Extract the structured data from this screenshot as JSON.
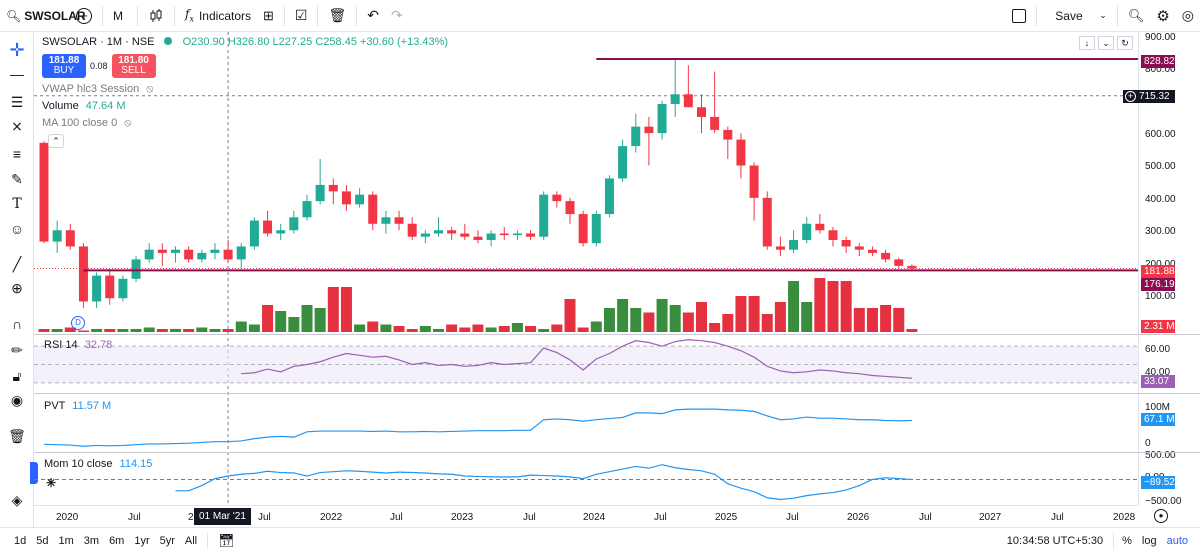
{
  "toolbar": {
    "symbol": "SWSOLAR",
    "interval": "M",
    "indicators": "Indicators",
    "save": "Save"
  },
  "legend": {
    "title": "SWSOLAR · 1M · NSE",
    "open": "O230.90",
    "high": "H326.80",
    "low": "L227.25",
    "close": "C258.45",
    "change": "+30.60 (+13.43%)",
    "buy_price": "181.88",
    "buy_label": "BUY",
    "spread": "0.08",
    "sell_price": "181.80",
    "sell_label": "SELL",
    "vwap": "VWAP hlc3 Session",
    "volume_label": "Volume",
    "volume_value": "47.64 M",
    "ma_label": "MA 100 close 0",
    "rsi_label": "RSI 14",
    "rsi_value": "32.78",
    "pvt_label": "PVT",
    "pvt_value": "11.57 M",
    "mom_label": "Mom 10 close",
    "mom_value": "114.15"
  },
  "price_axis": {
    "ticks": [
      "900.00",
      "800.00",
      "600.00",
      "500.00",
      "400.00",
      "300.00",
      "200.00",
      "100.00"
    ],
    "tag_hline_top": "828.82",
    "tag_cursor": "715.32",
    "tag_last": "181.88",
    "tag_hline_bottom": "176.19",
    "tag_volume": "2.31 M",
    "rsi_ticks": [
      "60.00",
      "40.00"
    ],
    "rsi_tag": "33.07",
    "pvt_ticks": [
      "100M",
      "0"
    ],
    "pvt_tag": "67.1 M",
    "mom_ticks": [
      "500.00",
      "0.00",
      "−500.00"
    ],
    "mom_tag": "−89.52"
  },
  "time_axis": {
    "labels": [
      "2020",
      "Jul",
      "2",
      "Jul",
      "2022",
      "Jul",
      "2023",
      "Jul",
      "2024",
      "Jul",
      "2025",
      "Jul",
      "2026",
      "Jul",
      "2027",
      "Jul",
      "2028"
    ],
    "cursor_label": "01 Mar '21"
  },
  "bottombar": {
    "ranges": [
      "1d",
      "5d",
      "1m",
      "3m",
      "6m",
      "1yr",
      "5yr",
      "All"
    ],
    "clock": "10:34:58 UTC+5:30",
    "percent": "%",
    "log": "log",
    "auto": "auto"
  },
  "chart_data": {
    "type": "candlestick",
    "interval": "1M",
    "x_start": "2020-01",
    "candles": [
      [
        570,
        575,
        260,
        265
      ],
      [
        265,
        330,
        230,
        300
      ],
      [
        300,
        320,
        240,
        250
      ],
      [
        250,
        260,
        60,
        80
      ],
      [
        80,
        170,
        60,
        160
      ],
      [
        160,
        180,
        70,
        90
      ],
      [
        90,
        160,
        80,
        150
      ],
      [
        150,
        220,
        140,
        210
      ],
      [
        210,
        260,
        200,
        240
      ],
      [
        240,
        260,
        190,
        230
      ],
      [
        230,
        250,
        200,
        240
      ],
      [
        240,
        250,
        200,
        210
      ],
      [
        210,
        240,
        200,
        230
      ],
      [
        230,
        260,
        210,
        240
      ],
      [
        240,
        270,
        200,
        210
      ],
      [
        210,
        260,
        180,
        250
      ],
      [
        250,
        340,
        240,
        330
      ],
      [
        330,
        360,
        280,
        290
      ],
      [
        290,
        320,
        270,
        300
      ],
      [
        300,
        360,
        290,
        340
      ],
      [
        340,
        410,
        330,
        390
      ],
      [
        390,
        520,
        380,
        440
      ],
      [
        440,
        460,
        380,
        420
      ],
      [
        420,
        440,
        360,
        380
      ],
      [
        380,
        430,
        370,
        410
      ],
      [
        410,
        420,
        300,
        320
      ],
      [
        320,
        360,
        290,
        340
      ],
      [
        340,
        360,
        300,
        320
      ],
      [
        320,
        340,
        270,
        280
      ],
      [
        280,
        300,
        260,
        290
      ],
      [
        290,
        340,
        280,
        300
      ],
      [
        300,
        310,
        270,
        290
      ],
      [
        290,
        320,
        270,
        280
      ],
      [
        280,
        300,
        260,
        270
      ],
      [
        270,
        300,
        250,
        290
      ],
      [
        290,
        310,
        270,
        285
      ],
      [
        285,
        300,
        270,
        290
      ],
      [
        290,
        300,
        270,
        280
      ],
      [
        280,
        420,
        270,
        410
      ],
      [
        410,
        420,
        370,
        390
      ],
      [
        390,
        400,
        320,
        350
      ],
      [
        350,
        360,
        250,
        260
      ],
      [
        260,
        360,
        250,
        350
      ],
      [
        350,
        470,
        340,
        460
      ],
      [
        460,
        580,
        450,
        560
      ],
      [
        560,
        660,
        540,
        620
      ],
      [
        620,
        650,
        500,
        600
      ],
      [
        600,
        700,
        580,
        690
      ],
      [
        690,
        830,
        650,
        720
      ],
      [
        720,
        810,
        680,
        680
      ],
      [
        680,
        720,
        600,
        650
      ],
      [
        650,
        790,
        600,
        610
      ],
      [
        610,
        620,
        520,
        580
      ],
      [
        580,
        600,
        460,
        500
      ],
      [
        500,
        510,
        330,
        400
      ],
      [
        400,
        420,
        240,
        250
      ],
      [
        250,
        280,
        220,
        240
      ],
      [
        240,
        300,
        230,
        270
      ],
      [
        270,
        340,
        260,
        320
      ],
      [
        320,
        350,
        290,
        300
      ],
      [
        300,
        310,
        250,
        270
      ],
      [
        270,
        280,
        230,
        250
      ],
      [
        250,
        260,
        220,
        240
      ],
      [
        240,
        250,
        220,
        230
      ],
      [
        230,
        240,
        200,
        210
      ],
      [
        210,
        215,
        180,
        190
      ],
      [
        190,
        195,
        175,
        182
      ]
    ],
    "volume_m": [
      2,
      2,
      3,
      1,
      2,
      2,
      2,
      2,
      3,
      2,
      2,
      2,
      3,
      2,
      2,
      7,
      5,
      18,
      14,
      10,
      18,
      16,
      30,
      30,
      5,
      7,
      5,
      4,
      2,
      4,
      2,
      5,
      3,
      5,
      3,
      4,
      6,
      4,
      2,
      5,
      22,
      3,
      7,
      16,
      22,
      16,
      13,
      22,
      18,
      13,
      20,
      6,
      12,
      24,
      24,
      12,
      20,
      34,
      20,
      36,
      34,
      34,
      16,
      16,
      18,
      16,
      2
    ],
    "hlines": [
      828.82,
      176.19
    ],
    "last_price": 181.88,
    "ylim": [
      0,
      920
    ],
    "log_scale": false,
    "rsi": [
      null,
      null,
      null,
      null,
      null,
      null,
      null,
      null,
      null,
      null,
      null,
      null,
      null,
      null,
      null,
      40,
      41,
      45,
      42,
      48,
      50,
      53,
      58,
      62,
      60,
      58,
      59,
      55,
      50,
      52,
      49,
      50,
      48,
      49,
      52,
      50,
      51,
      52,
      68,
      63,
      55,
      44,
      56,
      62,
      70,
      76,
      74,
      70,
      75,
      77,
      76,
      74,
      70,
      65,
      58,
      48,
      43,
      41,
      42,
      44,
      43,
      41,
      40,
      38,
      37,
      36,
      35
    ],
    "rsi_ylim": [
      20,
      80
    ],
    "pvt_m": [
      -5,
      -6,
      -7,
      -10,
      -8,
      -9,
      -8,
      -6,
      -4,
      -4,
      -3,
      -2,
      0,
      2,
      2,
      4,
      10,
      14,
      16,
      14,
      28,
      30,
      30,
      30,
      30,
      29,
      30,
      28,
      28,
      29,
      28,
      29,
      30,
      31,
      31,
      31,
      32,
      32,
      60,
      62,
      60,
      56,
      60,
      63,
      66,
      78,
      78,
      76,
      86,
      88,
      88,
      88,
      86,
      85,
      82,
      70,
      60,
      62,
      67,
      64,
      64,
      62,
      60,
      60,
      58,
      57,
      58
    ],
    "pvt_ylim": [
      -20,
      120
    ],
    "mom": [
      null,
      null,
      null,
      null,
      null,
      null,
      null,
      null,
      null,
      null,
      -260,
      -260,
      -140,
      20,
      80,
      120,
      140,
      190,
      160,
      150,
      80,
      160,
      180,
      200,
      190,
      170,
      150,
      170,
      160,
      150,
      130,
      120,
      80,
      70,
      60,
      60,
      60,
      100,
      90,
      80,
      60,
      20,
      120,
      180,
      240,
      300,
      260,
      340,
      270,
      230,
      200,
      120,
      -100,
      -200,
      -280,
      -420,
      -460,
      -430,
      -370,
      -330,
      -300,
      -240,
      -140,
      0,
      40,
      20,
      0
    ],
    "mom_ylim": [
      -540,
      540
    ]
  }
}
